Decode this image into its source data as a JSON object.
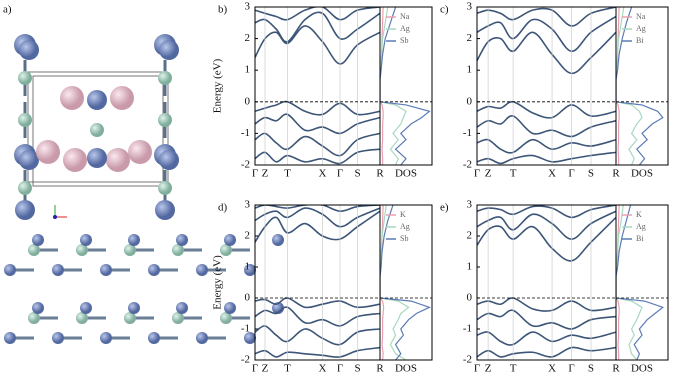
{
  "structure_panel": {
    "label": "a)"
  },
  "chart_data": [
    {
      "type": "bands",
      "label": "b)",
      "ylabel": "Energy (eV)",
      "color": "#3d5678",
      "xlim": [
        0,
        1
      ],
      "ylim": [
        -2,
        3
      ],
      "yticks": [
        -2,
        -1,
        0,
        1,
        2,
        3
      ],
      "xticks": [
        {
          "value": 0,
          "label": "Γ"
        },
        {
          "value": 0.08,
          "label": "Z"
        },
        {
          "value": 0.26,
          "label": "T"
        },
        {
          "value": 0.54,
          "label": "X"
        },
        {
          "value": 0.68,
          "label": "Γ"
        },
        {
          "value": 0.82,
          "label": "S"
        },
        {
          "value": 1,
          "label": "R"
        }
      ],
      "grid": true,
      "hline": 0,
      "x": [
        0,
        0.08,
        0.17,
        0.26,
        0.4,
        0.54,
        0.68,
        0.82,
        1
      ],
      "series": [
        {
          "values": [
            1.4,
            2.0,
            2.2,
            1.85,
            2.4,
            1.9,
            1.2,
            1.8,
            2.2
          ]
        },
        {
          "values": [
            2.5,
            2.6,
            2.3,
            1.9,
            2.6,
            2.8,
            2.0,
            2.3,
            2.8
          ]
        },
        {
          "values": [
            2.9,
            2.8,
            2.7,
            2.6,
            2.9,
            3.0,
            2.6,
            2.9,
            3.0
          ]
        },
        {
          "values": [
            -0.3,
            -0.2,
            -0.1,
            0,
            -0.3,
            -0.4,
            -0.05,
            -0.4,
            -0.3
          ]
        },
        {
          "values": [
            -0.7,
            -0.5,
            -0.6,
            -0.4,
            -0.9,
            -0.8,
            -1.0,
            -0.7,
            -0.5
          ]
        },
        {
          "values": [
            -1.2,
            -1.0,
            -1.3,
            -1.5,
            -1.1,
            -1.4,
            -1.7,
            -1.2,
            -1.0
          ]
        },
        {
          "values": [
            -1.8,
            -1.6,
            -1.9,
            -1.7,
            -1.9,
            -1.8,
            -1.95,
            -1.6,
            -1.5
          ]
        }
      ]
    },
    {
      "type": "dos",
      "xlabel": "DOS",
      "xlim": [
        0,
        1
      ],
      "ylim": [
        -2,
        3
      ],
      "hline": 0,
      "legend": "upper left",
      "y": [
        -2,
        -1.8,
        -1.5,
        -1.2,
        -1,
        -0.7,
        -0.5,
        -0.3,
        -0.1,
        0,
        0.3,
        0.7,
        1,
        1.5,
        2,
        2.5,
        3
      ],
      "series": [
        {
          "name": "Na",
          "color": "#e8a0b0",
          "values": [
            0.05,
            0.05,
            0.04,
            0.05,
            0.05,
            0.05,
            0.06,
            0.06,
            0.04,
            0,
            0,
            0,
            0.02,
            0.03,
            0.04,
            0.05,
            0.06
          ]
        },
        {
          "name": "Ag",
          "color": "#a8d8c0",
          "values": [
            0.3,
            0.35,
            0.2,
            0.35,
            0.25,
            0.4,
            0.45,
            0.5,
            0.3,
            0,
            0,
            0,
            0.01,
            0.03,
            0.05,
            0.1,
            0.15
          ]
        },
        {
          "name": "Sb",
          "color": "#5b7bb5",
          "values": [
            0.4,
            0.5,
            0.3,
            0.5,
            0.4,
            0.6,
            0.8,
            0.95,
            0.5,
            0,
            0,
            0,
            0.02,
            0.05,
            0.1,
            0.2,
            0.3
          ]
        }
      ]
    },
    {
      "type": "bands",
      "label": "c)",
      "color": "#3d5678",
      "xlim": [
        0,
        1
      ],
      "ylim": [
        -2,
        3
      ],
      "yticks": [
        -2,
        -1,
        0,
        1,
        2,
        3
      ],
      "xticks": [
        {
          "value": 0,
          "label": "Γ"
        },
        {
          "value": 0.08,
          "label": "Z"
        },
        {
          "value": 0.26,
          "label": "T"
        },
        {
          "value": 0.54,
          "label": "X"
        },
        {
          "value": 0.68,
          "label": "Γ"
        },
        {
          "value": 0.82,
          "label": "S"
        },
        {
          "value": 1,
          "label": "R"
        }
      ],
      "grid": true,
      "hline": 0,
      "x": [
        0,
        0.08,
        0.17,
        0.26,
        0.4,
        0.54,
        0.68,
        0.82,
        1
      ],
      "series": [
        {
          "values": [
            1.3,
            1.9,
            2.0,
            1.6,
            2.2,
            1.5,
            0.9,
            1.4,
            2.2
          ]
        },
        {
          "values": [
            2.2,
            2.4,
            2.5,
            2.0,
            2.6,
            2.3,
            1.6,
            2.2,
            2.7
          ]
        },
        {
          "values": [
            2.8,
            2.9,
            2.8,
            2.6,
            2.9,
            2.9,
            2.4,
            2.8,
            3.0
          ]
        },
        {
          "values": [
            -0.3,
            -0.15,
            -0.2,
            0,
            -0.35,
            -0.5,
            -0.1,
            -0.45,
            -0.3
          ]
        },
        {
          "values": [
            -0.8,
            -0.6,
            -0.7,
            -0.45,
            -1.0,
            -0.9,
            -1.1,
            -0.8,
            -0.6
          ]
        },
        {
          "values": [
            -1.3,
            -1.2,
            -1.5,
            -1.6,
            -1.2,
            -1.5,
            -1.3,
            -1.4,
            -1.2
          ]
        },
        {
          "values": [
            -1.9,
            -1.8,
            -1.95,
            -1.8,
            -1.7,
            -1.9,
            -1.8,
            -1.7,
            -1.6
          ]
        }
      ]
    },
    {
      "type": "dos",
      "xlabel": "DOS",
      "xlim": [
        0,
        1
      ],
      "ylim": [
        -2,
        3
      ],
      "hline": 0,
      "legend": "upper left",
      "y": [
        -2,
        -1.8,
        -1.5,
        -1.2,
        -1,
        -0.7,
        -0.5,
        -0.3,
        -0.1,
        0,
        0.3,
        0.7,
        1,
        1.5,
        2,
        2.5,
        3
      ],
      "series": [
        {
          "name": "Na",
          "color": "#e8a0b0",
          "values": [
            0.05,
            0.05,
            0.04,
            0.05,
            0.05,
            0.05,
            0.06,
            0.06,
            0.04,
            0,
            0,
            0,
            0.02,
            0.03,
            0.04,
            0.05,
            0.06
          ]
        },
        {
          "name": "Ag",
          "color": "#a8d8c0",
          "values": [
            0.3,
            0.35,
            0.25,
            0.4,
            0.3,
            0.4,
            0.5,
            0.45,
            0.3,
            0,
            0,
            0,
            0.01,
            0.03,
            0.05,
            0.1,
            0.15
          ]
        },
        {
          "name": "Bi",
          "color": "#5b7bb5",
          "values": [
            0.45,
            0.55,
            0.4,
            0.6,
            0.5,
            0.7,
            0.9,
            0.8,
            0.5,
            0,
            0,
            0,
            0.03,
            0.06,
            0.12,
            0.2,
            0.3
          ]
        }
      ]
    },
    {
      "type": "bands",
      "label": "d)",
      "ylabel": "Energy (eV)",
      "color": "#3d5678",
      "xlim": [
        0,
        1
      ],
      "ylim": [
        -2,
        3
      ],
      "yticks": [
        -2,
        -1,
        0,
        1,
        2,
        3
      ],
      "xticks": [
        {
          "value": 0,
          "label": "Γ"
        },
        {
          "value": 0.08,
          "label": "Z"
        },
        {
          "value": 0.26,
          "label": "T"
        },
        {
          "value": 0.54,
          "label": "X"
        },
        {
          "value": 0.68,
          "label": "Γ"
        },
        {
          "value": 0.82,
          "label": "S"
        },
        {
          "value": 1,
          "label": "R"
        }
      ],
      "grid": true,
      "hline": 0,
      "x": [
        0,
        0.08,
        0.17,
        0.26,
        0.4,
        0.54,
        0.68,
        0.82,
        1
      ],
      "series": [
        {
          "values": [
            1.8,
            2.3,
            2.6,
            2.1,
            2.4,
            2.0,
            1.9,
            2.3,
            2.8
          ]
        },
        {
          "values": [
            2.5,
            2.7,
            2.8,
            2.6,
            2.9,
            2.7,
            2.3,
            2.6,
            2.9
          ]
        },
        {
          "values": [
            2.9,
            3.0,
            2.95,
            2.9,
            3.0,
            3.0,
            2.8,
            2.95,
            3.0
          ]
        },
        {
          "values": [
            -0.1,
            -0.05,
            -0.2,
            0,
            -0.3,
            -0.2,
            -0.1,
            -0.3,
            -0.2
          ]
        },
        {
          "values": [
            -0.6,
            -0.4,
            -0.5,
            -0.3,
            -0.8,
            -0.7,
            -0.9,
            -0.6,
            -0.5
          ]
        },
        {
          "values": [
            -1.1,
            -0.9,
            -1.2,
            -1.4,
            -1.0,
            -1.3,
            -1.5,
            -1.1,
            -1.0
          ]
        },
        {
          "values": [
            -1.8,
            -1.7,
            -1.9,
            -1.75,
            -1.8,
            -1.85,
            -1.9,
            -1.7,
            -1.6
          ]
        }
      ]
    },
    {
      "type": "dos",
      "xlabel": "DOS",
      "xlim": [
        0,
        1
      ],
      "ylim": [
        -2,
        3
      ],
      "hline": 0,
      "legend": "upper left",
      "y": [
        -2,
        -1.8,
        -1.5,
        -1.2,
        -1,
        -0.7,
        -0.5,
        -0.3,
        -0.1,
        0,
        0.3,
        0.7,
        1,
        1.5,
        2,
        2.5,
        3
      ],
      "series": [
        {
          "name": "K",
          "color": "#e8a0b0",
          "values": [
            0.05,
            0.06,
            0.04,
            0.05,
            0.05,
            0.05,
            0.06,
            0.07,
            0.05,
            0,
            0,
            0,
            0.02,
            0.03,
            0.04,
            0.05,
            0.06
          ]
        },
        {
          "name": "Ag",
          "color": "#a8d8c0",
          "values": [
            0.5,
            0.3,
            0.2,
            0.3,
            0.25,
            0.35,
            0.4,
            0.55,
            0.35,
            0,
            0,
            0,
            0.01,
            0.02,
            0.04,
            0.08,
            0.12
          ]
        },
        {
          "name": "Sb",
          "color": "#5b7bb5",
          "values": [
            0.3,
            0.4,
            0.3,
            0.45,
            0.4,
            0.55,
            0.7,
            0.95,
            0.6,
            0,
            0,
            0,
            0.02,
            0.04,
            0.08,
            0.15,
            0.25
          ]
        }
      ]
    },
    {
      "type": "bands",
      "label": "e)",
      "color": "#3d5678",
      "xlim": [
        0,
        1
      ],
      "ylim": [
        -2,
        3
      ],
      "yticks": [
        -2,
        -1,
        0,
        1,
        2,
        3
      ],
      "xticks": [
        {
          "value": 0,
          "label": "Γ"
        },
        {
          "value": 0.08,
          "label": "Z"
        },
        {
          "value": 0.26,
          "label": "T"
        },
        {
          "value": 0.54,
          "label": "X"
        },
        {
          "value": 0.68,
          "label": "Γ"
        },
        {
          "value": 0.82,
          "label": "S"
        },
        {
          "value": 1,
          "label": "R"
        }
      ],
      "grid": true,
      "hline": 0,
      "x": [
        0,
        0.08,
        0.17,
        0.26,
        0.4,
        0.54,
        0.68,
        0.82,
        1
      ],
      "series": [
        {
          "values": [
            1.7,
            2.2,
            2.3,
            1.9,
            2.3,
            1.6,
            1.2,
            1.8,
            2.6
          ]
        },
        {
          "values": [
            2.3,
            2.5,
            2.6,
            2.2,
            2.7,
            2.4,
            1.9,
            2.4,
            2.8
          ]
        },
        {
          "values": [
            2.8,
            2.9,
            2.85,
            2.7,
            2.95,
            2.9,
            2.6,
            2.85,
            3.0
          ]
        },
        {
          "values": [
            -0.2,
            -0.1,
            -0.2,
            0,
            -0.35,
            -0.4,
            -0.1,
            -0.4,
            -0.3
          ]
        },
        {
          "values": [
            -0.7,
            -0.5,
            -0.6,
            -0.4,
            -0.9,
            -0.8,
            -1.0,
            -0.7,
            -0.6
          ]
        },
        {
          "values": [
            -1.2,
            -1.1,
            -1.4,
            -1.5,
            -1.1,
            -1.4,
            -1.2,
            -1.3,
            -1.1
          ]
        },
        {
          "values": [
            -1.9,
            -1.7,
            -1.9,
            -1.8,
            -1.75,
            -1.9,
            -1.6,
            -1.7,
            -1.6
          ]
        }
      ]
    },
    {
      "type": "dos",
      "xlabel": "DOS",
      "xlim": [
        0,
        1
      ],
      "ylim": [
        -2,
        3
      ],
      "hline": 0,
      "legend": "upper left",
      "y": [
        -2,
        -1.8,
        -1.5,
        -1.2,
        -1,
        -0.7,
        -0.5,
        -0.3,
        -0.1,
        0,
        0.3,
        0.7,
        1,
        1.5,
        2,
        2.5,
        3
      ],
      "series": [
        {
          "name": "K",
          "color": "#e8a0b0",
          "values": [
            0.05,
            0.05,
            0.04,
            0.05,
            0.05,
            0.05,
            0.06,
            0.06,
            0.04,
            0,
            0,
            0,
            0.02,
            0.03,
            0.04,
            0.05,
            0.06
          ]
        },
        {
          "name": "Ag",
          "color": "#a8d8c0",
          "values": [
            0.4,
            0.3,
            0.25,
            0.35,
            0.3,
            0.4,
            0.45,
            0.5,
            0.3,
            0,
            0,
            0,
            0.01,
            0.03,
            0.05,
            0.1,
            0.14
          ]
        },
        {
          "name": "Bi",
          "color": "#5b7bb5",
          "values": [
            0.4,
            0.45,
            0.35,
            0.5,
            0.45,
            0.6,
            0.75,
            0.9,
            0.55,
            0,
            0,
            0,
            0.03,
            0.06,
            0.12,
            0.2,
            0.28
          ]
        }
      ]
    }
  ]
}
